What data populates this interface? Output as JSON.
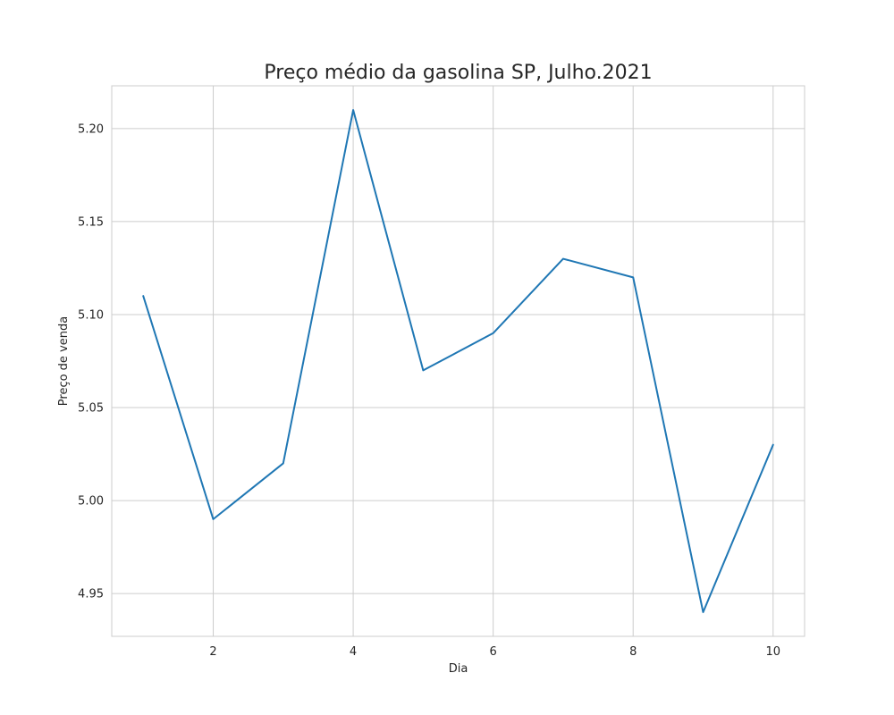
{
  "chart_data": {
    "type": "line",
    "title": "Preço médio da gasolina SP, Julho.2021",
    "xlabel": "Dia",
    "ylabel": "Preço de venda",
    "xlim": [
      0.55,
      10.45
    ],
    "ylim": [
      4.927,
      5.223
    ],
    "xticks": [
      2,
      4,
      6,
      8,
      10
    ],
    "yticks": [
      4.95,
      5.0,
      5.05,
      5.1,
      5.15,
      5.2
    ],
    "grid": true,
    "x": [
      1,
      2,
      3,
      4,
      5,
      6,
      7,
      8,
      9,
      10
    ],
    "series": [
      {
        "color": "#1f77b4",
        "values": [
          5.11,
          4.99,
          5.02,
          5.21,
          5.07,
          5.09,
          5.13,
          5.12,
          4.94,
          5.03
        ]
      }
    ]
  }
}
